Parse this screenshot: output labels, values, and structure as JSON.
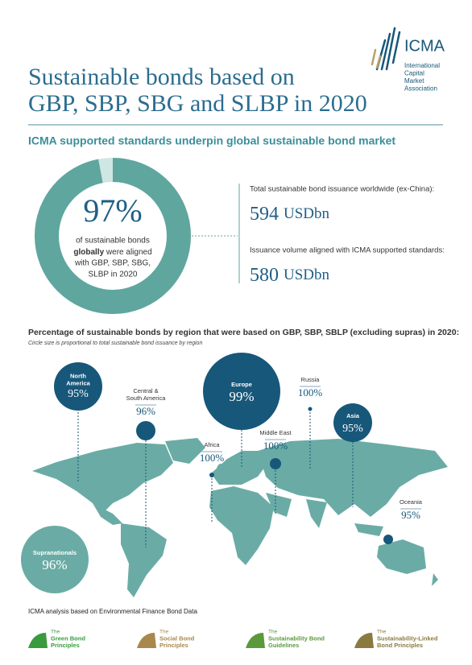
{
  "logo": {
    "name": "ICMA",
    "lines": [
      "International",
      "Capital",
      "Market",
      "Association"
    ]
  },
  "header": {
    "title_lines": [
      "Sustainable bonds based on",
      "GBP, SBP, SBG and SLBP in 2020"
    ],
    "subtitle": "ICMA supported standards underpin global sustainable bond market"
  },
  "donut": {
    "percent": 97,
    "percent_label": "97%",
    "caption_top": "of sustainable bonds",
    "caption_bold": "globally",
    "caption_rest": " were aligned",
    "caption_lines": [
      "with GBP, SBP, SBG,",
      "SLBP in 2020"
    ]
  },
  "stats": [
    {
      "label": "Total sustainable bond issuance worldwide (ex-China):",
      "value": 594,
      "unit": "USDbn"
    },
    {
      "label": "Issuance volume aligned with ICMA supported standards:",
      "value": 580,
      "unit": "USDbn"
    }
  ],
  "map": {
    "title": "Percentage of sustainable bonds by region that were based on GBP, SBP, SBLP (excluding supras) in 2020:",
    "note": "Circle size is proportional to total sustainable bond issuance by region",
    "regions": [
      {
        "name_lines": [
          "North",
          "America"
        ],
        "value_label": "95%"
      },
      {
        "name_lines": [
          "Central &",
          "South America"
        ],
        "value_label": "96%"
      },
      {
        "name_lines": [
          "Europe"
        ],
        "value_label": "99%"
      },
      {
        "name_lines": [
          "Russia"
        ],
        "value_label": "100%"
      },
      {
        "name_lines": [
          "Asia"
        ],
        "value_label": "95%"
      },
      {
        "name_lines": [
          "Africa"
        ],
        "value_label": "100%"
      },
      {
        "name_lines": [
          "Middle East"
        ],
        "value_label": "100%"
      },
      {
        "name_lines": [
          "Oceania"
        ],
        "value_label": "95%"
      },
      {
        "name_lines": [
          "Supranationals"
        ],
        "value_label": "96%"
      }
    ]
  },
  "footer": {
    "source": "ICMA analysis based on Environmental Finance Bond Data",
    "logos": [
      {
        "lines": [
          "The",
          "Green Bond",
          "Principles"
        ]
      },
      {
        "lines": [
          "The",
          "Social Bond",
          "Principles"
        ]
      },
      {
        "lines": [
          "The",
          "Sustainability Bond",
          "Guidelines"
        ]
      },
      {
        "lines": [
          "The",
          "Sustainability-Linked",
          "Bond Principles"
        ]
      }
    ]
  }
}
